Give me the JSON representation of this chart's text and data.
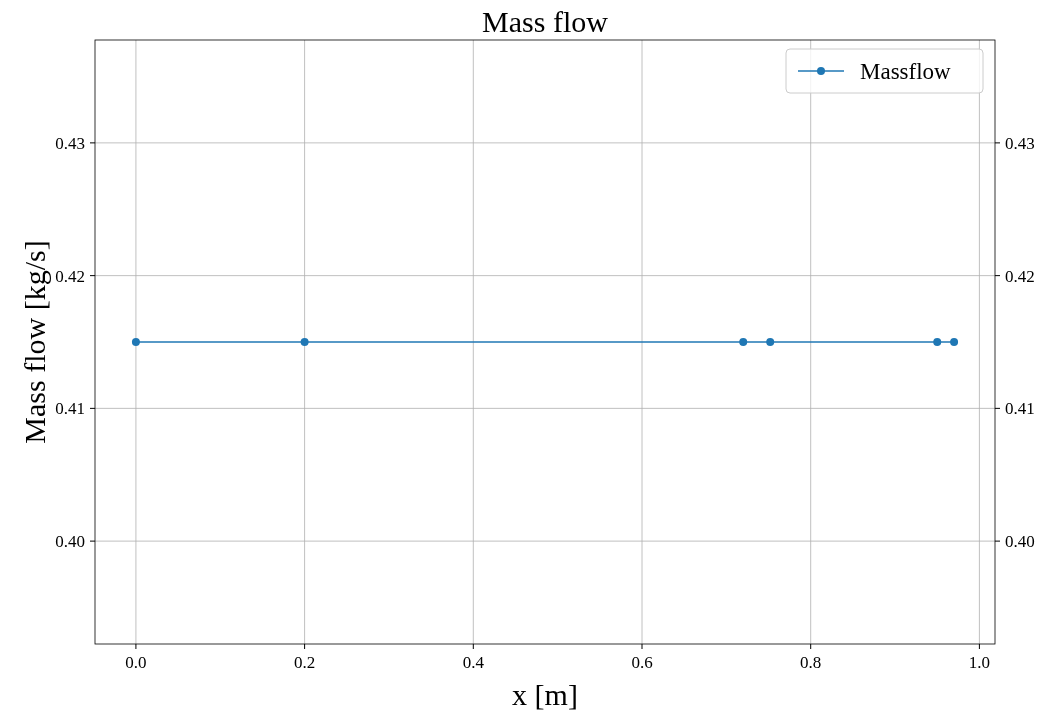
{
  "chart_data": {
    "type": "line",
    "title": "Mass flow",
    "xlabel": "x [m]",
    "ylabel": "Mass flow [kg/s]",
    "x": [
      0,
      0.2,
      0.72,
      0.752,
      0.95,
      0.97
    ],
    "series": [
      {
        "name": "Massflow",
        "color": "#1f77b4",
        "values": [
          0.415,
          0.415,
          0.415,
          0.415,
          0.415,
          0.415
        ]
      }
    ],
    "xlim": [
      -0.0485,
      1.0185
    ],
    "xticks": [
      {
        "value": 0,
        "label": "0.0"
      },
      {
        "value": 0.2,
        "label": "0.2"
      },
      {
        "value": 0.4,
        "label": "0.4"
      },
      {
        "value": 0.6,
        "label": "0.6"
      },
      {
        "value": 0.8,
        "label": "0.8"
      },
      {
        "value": 1,
        "label": "1.0"
      }
    ],
    "ylim": [
      0.39225,
      0.43775
    ],
    "yticks": [
      {
        "value": 0.4,
        "label": "0.40"
      },
      0.41,
      0.42,
      0.43
    ],
    "y2lim": [
      0.39225,
      0.43775
    ],
    "y2ticks": [
      {
        "value": 0.4,
        "label": "0.40"
      },
      0.41,
      0.42,
      0.43
    ],
    "grid": true,
    "legend": "top right",
    "marker": "circle",
    "line_style": "solid"
  }
}
